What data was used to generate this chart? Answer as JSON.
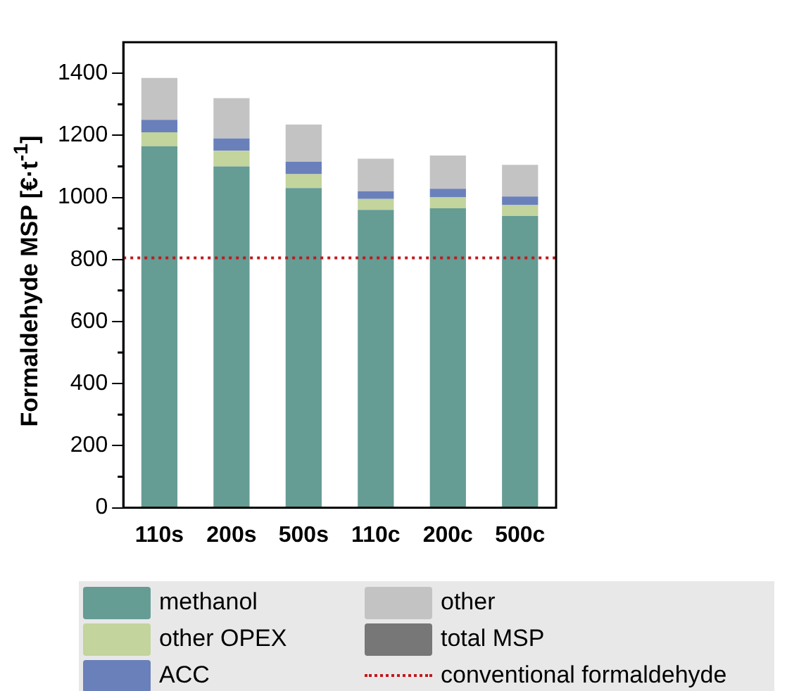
{
  "chart_data": {
    "type": "bar",
    "stacked": true,
    "ylabel": "Formaldehyde MSP [€·t$^{-1}$]",
    "categories": [
      "110s",
      "200s",
      "500s",
      "110c",
      "200c",
      "500c"
    ],
    "series": [
      {
        "name": "methanol",
        "color": "#659c94",
        "values": [
          1165,
          1100,
          1030,
          960,
          965,
          940
        ]
      },
      {
        "name": "other OPEX",
        "color": "#c3d49c",
        "values": [
          45,
          50,
          45,
          35,
          35,
          35
        ]
      },
      {
        "name": "ACC",
        "color": "#6a80bb",
        "values": [
          40,
          40,
          40,
          25,
          28,
          28
        ]
      },
      {
        "name": "other",
        "color": "#c3c3c3",
        "values": [
          135,
          130,
          120,
          105,
          107,
          102
        ]
      },
      {
        "name": "total MSP",
        "color": "#777777",
        "values": [
          null,
          null,
          null,
          null,
          null,
          null
        ]
      }
    ],
    "ylim": [
      0,
      1500
    ],
    "yticks": [
      0,
      200,
      400,
      600,
      800,
      1000,
      1200,
      1400
    ],
    "grid": false,
    "legend": "bottom",
    "ref_lines": [
      {
        "axis": "y",
        "value": 805,
        "label": "conventional formaldehyde",
        "color": "#c0181e",
        "line_style": "dotted"
      }
    ]
  }
}
